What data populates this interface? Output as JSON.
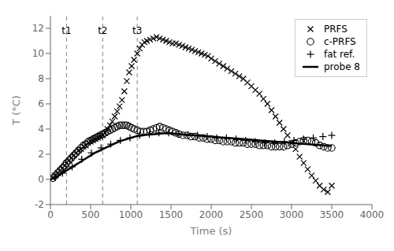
{
  "chart_data": {
    "type": "scatter",
    "xlabel": "Time (s)",
    "ylabel": "T (°C)",
    "xlim": [
      0,
      4000
    ],
    "ylim": [
      -2,
      13
    ],
    "xticks": [
      0,
      500,
      1000,
      1500,
      2000,
      2500,
      3000,
      3500,
      4000
    ],
    "yticks": [
      -2,
      0,
      2,
      4,
      6,
      8,
      10,
      12
    ],
    "grid": false,
    "legend": "upper right",
    "series": [
      {
        "name": "PRFS",
        "type": "scatter",
        "marker": "x",
        "color": "#000000",
        "x": [
          30,
          60,
          90,
          120,
          150,
          180,
          200,
          230,
          260,
          290,
          320,
          350,
          380,
          410,
          440,
          470,
          500,
          530,
          560,
          590,
          620,
          650,
          680,
          710,
          740,
          770,
          800,
          830,
          860,
          890,
          920,
          950,
          980,
          1010,
          1040,
          1080,
          1110,
          1140,
          1170,
          1200,
          1240,
          1280,
          1320,
          1360,
          1400,
          1440,
          1480,
          1520,
          1560,
          1600,
          1640,
          1680,
          1720,
          1760,
          1800,
          1840,
          1880,
          1920,
          1960,
          2000,
          2050,
          2100,
          2150,
          2200,
          2250,
          2300,
          2350,
          2400,
          2450,
          2500,
          2550,
          2600,
          2650,
          2700,
          2750,
          2800,
          2850,
          2900,
          2950,
          3000,
          3050,
          3100,
          3150,
          3200,
          3250,
          3300,
          3350,
          3400,
          3450,
          3500
        ],
        "values": [
          0.1,
          0.3,
          0.5,
          0.7,
          0.9,
          1.1,
          1.3,
          1.5,
          1.7,
          1.9,
          2.1,
          2.3,
          2.4,
          2.6,
          2.7,
          2.9,
          3.0,
          3.1,
          3.2,
          3.3,
          3.4,
          3.5,
          3.7,
          4.0,
          4.3,
          4.6,
          5.0,
          5.4,
          5.8,
          6.3,
          7.0,
          7.8,
          8.5,
          9.0,
          9.5,
          10.0,
          10.4,
          10.7,
          10.9,
          11.0,
          11.1,
          11.2,
          11.3,
          11.2,
          11.1,
          11.0,
          10.9,
          10.8,
          10.8,
          10.7,
          10.6,
          10.5,
          10.4,
          10.3,
          10.2,
          10.1,
          10.0,
          9.9,
          9.8,
          9.6,
          9.4,
          9.2,
          9.0,
          8.8,
          8.6,
          8.4,
          8.2,
          8.0,
          7.7,
          7.4,
          7.1,
          6.8,
          6.4,
          6.0,
          5.5,
          5.0,
          4.5,
          4.0,
          3.5,
          2.9,
          2.4,
          1.8,
          1.3,
          0.8,
          0.3,
          -0.1,
          -0.5,
          -0.8,
          -1.0,
          -0.5
        ]
      },
      {
        "name": "c-PRFS",
        "type": "scatter",
        "marker": "o",
        "color": "#000000",
        "x": [
          30,
          60,
          90,
          120,
          150,
          180,
          200,
          230,
          260,
          290,
          320,
          350,
          380,
          410,
          440,
          470,
          500,
          530,
          560,
          590,
          620,
          650,
          680,
          710,
          740,
          770,
          800,
          830,
          860,
          890,
          920,
          950,
          980,
          1010,
          1040,
          1080,
          1120,
          1160,
          1200,
          1240,
          1280,
          1320,
          1360,
          1400,
          1440,
          1480,
          1520,
          1560,
          1600,
          1650,
          1700,
          1750,
          1800,
          1850,
          1900,
          1950,
          2000,
          2050,
          2100,
          2150,
          2200,
          2250,
          2300,
          2350,
          2400,
          2450,
          2500,
          2550,
          2600,
          2650,
          2700,
          2750,
          2800,
          2850,
          2900,
          2950,
          3000,
          3050,
          3100,
          3150,
          3200,
          3250,
          3300,
          3350,
          3400,
          3450,
          3500
        ],
        "values": [
          0.1,
          0.3,
          0.5,
          0.7,
          0.9,
          1.1,
          1.3,
          1.5,
          1.7,
          1.9,
          2.1,
          2.3,
          2.5,
          2.7,
          2.8,
          3.0,
          3.1,
          3.2,
          3.3,
          3.4,
          3.5,
          3.6,
          3.7,
          3.8,
          3.9,
          4.0,
          4.1,
          4.2,
          4.3,
          4.3,
          4.3,
          4.3,
          4.2,
          4.1,
          4.0,
          3.9,
          3.8,
          3.8,
          3.8,
          3.9,
          4.0,
          4.1,
          4.2,
          4.1,
          4.0,
          3.9,
          3.8,
          3.7,
          3.6,
          3.5,
          3.5,
          3.4,
          3.4,
          3.3,
          3.3,
          3.2,
          3.2,
          3.1,
          3.1,
          3.0,
          3.0,
          3.0,
          2.9,
          2.9,
          2.9,
          2.8,
          2.8,
          2.8,
          2.7,
          2.7,
          2.7,
          2.6,
          2.6,
          2.6,
          2.6,
          2.7,
          2.8,
          2.9,
          3.0,
          3.1,
          3.1,
          3.0,
          2.9,
          2.7,
          2.6,
          2.5,
          2.5
        ]
      },
      {
        "name": "fat ref.",
        "type": "scatter",
        "marker": "+",
        "color": "#000000",
        "x": [
          60,
          150,
          270,
          390,
          510,
          630,
          750,
          870,
          990,
          1110,
          1230,
          1350,
          1470,
          1590,
          1710,
          1830,
          1950,
          2070,
          2190,
          2310,
          2430,
          2550,
          2670,
          2790,
          2910,
          3030,
          3150,
          3270,
          3390,
          3500
        ],
        "values": [
          0.2,
          0.5,
          1.0,
          1.6,
          2.1,
          2.5,
          2.8,
          3.1,
          3.3,
          3.5,
          3.6,
          3.7,
          3.7,
          3.6,
          3.5,
          3.5,
          3.4,
          3.3,
          3.3,
          3.2,
          3.1,
          3.0,
          2.9,
          2.9,
          3.0,
          3.1,
          3.2,
          3.3,
          3.4,
          3.5
        ]
      },
      {
        "name": "probe 8",
        "type": "line",
        "line_style": "solid",
        "color": "#000000",
        "x": [
          0,
          50,
          100,
          150,
          200,
          250,
          300,
          350,
          400,
          450,
          500,
          550,
          600,
          650,
          700,
          750,
          800,
          850,
          900,
          950,
          1000,
          1050,
          1100,
          1150,
          1200,
          1300,
          1400,
          1500,
          1600,
          1700,
          1800,
          1900,
          2000,
          2100,
          2200,
          2300,
          2400,
          2500,
          2600,
          2700,
          2800,
          2900,
          3000,
          3100,
          3200,
          3300,
          3400,
          3500
        ],
        "values": [
          0.0,
          0.15,
          0.3,
          0.5,
          0.7,
          0.9,
          1.1,
          1.3,
          1.5,
          1.7,
          1.9,
          2.1,
          2.25,
          2.4,
          2.55,
          2.7,
          2.85,
          3.0,
          3.1,
          3.2,
          3.3,
          3.4,
          3.45,
          3.5,
          3.55,
          3.6,
          3.65,
          3.65,
          3.6,
          3.55,
          3.5,
          3.45,
          3.4,
          3.35,
          3.3,
          3.25,
          3.2,
          3.15,
          3.1,
          3.05,
          3.0,
          2.95,
          2.9,
          2.85,
          2.8,
          2.75,
          2.7,
          2.65
        ]
      }
    ],
    "annotations": [
      {
        "x": 200,
        "y": 12.4,
        "label": "t1",
        "line_style": "dashed",
        "color": "#808080"
      },
      {
        "x": 650,
        "y": 12.4,
        "label": "t2",
        "line_style": "dashed",
        "color": "#808080"
      },
      {
        "x": 1080,
        "y": 12.4,
        "label": "t3",
        "line_style": "dashed",
        "color": "#808080"
      }
    ]
  }
}
